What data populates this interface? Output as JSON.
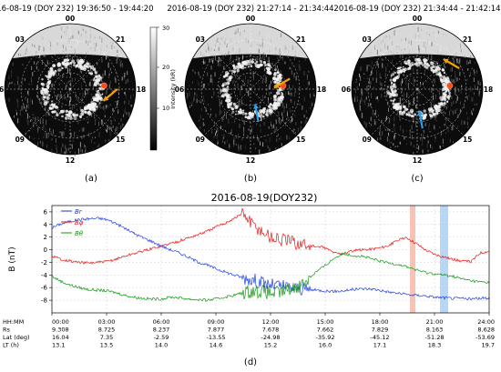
{
  "figure": {
    "panels": [
      {
        "id": "a",
        "timestamp": "2016-08-19 (DOY 232) 19:36:50 - 19:44:20",
        "caption": "(a)",
        "arrows": [
          {
            "color": "#f5a300",
            "tail": [
              0.86,
              0.5
            ],
            "angle_deg": 220
          }
        ],
        "dot": {
          "radius_frac": 0.52,
          "lt": 17.6
        }
      },
      {
        "id": "b",
        "timestamp": "2016-08-19 (DOY 232) 21:27:14 - 21:34:44",
        "caption": "(b)",
        "arrows": [
          {
            "color": "#f5a300",
            "tail": [
              0.8,
              0.58
            ],
            "angle_deg": 210
          },
          {
            "color": "#2ba0e8",
            "tail": [
              0.56,
              0.25
            ],
            "angle_deg": 100
          }
        ],
        "dot": {
          "radius_frac": 0.5,
          "lt": 17.6
        }
      },
      {
        "id": "c",
        "timestamp": "2016-08-19 (DOY 232) 21:34:44 - 21:42:14",
        "caption": "(c)",
        "arrows": [
          {
            "color": "#f5a300",
            "tail": [
              0.82,
              0.66
            ],
            "angle_deg": 150
          },
          {
            "color": "#2ba0e8",
            "tail": [
              0.54,
              0.2
            ],
            "angle_deg": 100
          }
        ],
        "dot": {
          "radius_frac": 0.5,
          "lt": 17.6
        }
      }
    ],
    "local_time_labels": [
      "00",
      "03",
      "06",
      "09",
      "12",
      "15",
      "18",
      "21"
    ],
    "colorbar": {
      "label": "Intensity (kR)",
      "ticks": [
        "10",
        "20",
        "30"
      ],
      "min": 0,
      "max": 30
    },
    "bottom_caption": "(d)"
  },
  "chart_data": {
    "type": "line",
    "title": "2016-08-19(DOY232)",
    "ylabel": "B (nT)",
    "ylim": [
      -10,
      7
    ],
    "yticks": [
      -8,
      -6,
      -4,
      -2,
      0,
      2,
      4,
      6
    ],
    "xlim": [
      0,
      24
    ],
    "legend": {
      "position": "top-left",
      "entries": [
        {
          "label": "Br",
          "color": "#1f3fdc"
        },
        {
          "label": "Bφ",
          "color": "#e01b1b"
        },
        {
          "label": "Bθ",
          "color": "#119911"
        }
      ]
    },
    "highlight_bands": [
      {
        "start": 19.65,
        "end": 19.95,
        "color": "#f7b8a8"
      },
      {
        "start": 21.3,
        "end": 21.75,
        "color": "#a9d0f5"
      }
    ],
    "series": [
      {
        "name": "Br",
        "color": "#1f3fdc",
        "x": [
          0,
          0.5,
          1,
          1.5,
          2,
          2.5,
          3,
          3.5,
          4,
          4.5,
          5,
          5.5,
          6,
          6.5,
          7,
          7.5,
          8,
          8.5,
          9,
          9.5,
          10,
          10.5,
          11,
          11.5,
          12,
          12.5,
          13,
          13.5,
          14,
          14.5,
          15,
          15.5,
          16,
          16.5,
          17,
          17.5,
          18,
          18.5,
          19,
          19.5,
          20,
          20.5,
          21,
          21.5,
          22,
          22.5,
          23,
          23.5,
          24
        ],
        "y": [
          3.5,
          4.1,
          4.5,
          4.8,
          4.9,
          5.0,
          4.8,
          4.2,
          3.4,
          2.6,
          1.9,
          1.3,
          0.6,
          0.0,
          -0.5,
          -1.2,
          -1.9,
          -2.4,
          -3.0,
          -3.5,
          -4.0,
          -4.4,
          -4.7,
          -5.2,
          -5.6,
          -5.7,
          -6.0,
          -6.1,
          -6.3,
          -6.4,
          -6.5,
          -6.6,
          -6.5,
          -6.3,
          -6.2,
          -6.2,
          -6.4,
          -6.7,
          -6.9,
          -7.1,
          -7.2,
          -7.3,
          -7.5,
          -7.6,
          -7.7,
          -7.7,
          -7.8,
          -7.7,
          -7.6
        ]
      },
      {
        "name": "Bφ",
        "color": "#e01b1b",
        "x": [
          0,
          0.5,
          1,
          1.5,
          2,
          2.5,
          3,
          3.5,
          4,
          4.5,
          5,
          5.5,
          6,
          6.5,
          7,
          7.5,
          8,
          8.5,
          9,
          9.5,
          10,
          10.5,
          11,
          11.5,
          12,
          12.5,
          13,
          13.5,
          14,
          14.5,
          15,
          15.5,
          16,
          16.5,
          17,
          17.5,
          18,
          18.5,
          19,
          19.5,
          20,
          20.5,
          21,
          21.5,
          22,
          22.5,
          23,
          23.5,
          24
        ],
        "y": [
          -1.0,
          -1.5,
          -1.8,
          -2.0,
          -2.1,
          -2.0,
          -1.9,
          -1.5,
          -1.0,
          -0.6,
          -0.2,
          0.2,
          0.6,
          1.0,
          1.4,
          1.9,
          2.4,
          2.9,
          3.6,
          4.2,
          5.0,
          5.8,
          4.0,
          3.0,
          2.0,
          1.6,
          1.4,
          1.0,
          0.7,
          0.5,
          0.3,
          -0.5,
          -0.6,
          -0.2,
          0.0,
          0.1,
          0.3,
          0.7,
          1.5,
          1.9,
          1.0,
          0.0,
          -0.7,
          -1.1,
          -1.5,
          -1.8,
          -1.9,
          -0.5,
          -0.2
        ]
      },
      {
        "name": "Bθ",
        "color": "#119911",
        "x": [
          0,
          0.5,
          1,
          1.5,
          2,
          2.5,
          3,
          3.5,
          4,
          4.5,
          5,
          5.5,
          6,
          6.5,
          7,
          7.5,
          8,
          8.5,
          9,
          9.5,
          10,
          10.5,
          11,
          11.5,
          12,
          12.5,
          13,
          13.5,
          14,
          14.5,
          15,
          15.5,
          16,
          16.5,
          17,
          17.5,
          18,
          18.5,
          19,
          19.5,
          20,
          20.5,
          21,
          21.5,
          22,
          22.5,
          23,
          23.5,
          24
        ],
        "y": [
          -4.2,
          -5.0,
          -5.6,
          -6.0,
          -6.3,
          -6.4,
          -6.5,
          -6.8,
          -7.2,
          -7.5,
          -7.7,
          -7.8,
          -7.8,
          -7.5,
          -7.6,
          -7.8,
          -7.9,
          -8.0,
          -7.8,
          -7.5,
          -7.2,
          -6.8,
          -6.5,
          -6.6,
          -6.9,
          -6.8,
          -6.2,
          -5.8,
          -4.8,
          -3.5,
          -2.5,
          -1.3,
          -0.6,
          -0.9,
          -1.0,
          -1.4,
          -1.8,
          -2.1,
          -2.3,
          -2.7,
          -3.2,
          -3.6,
          -3.8,
          -4.0,
          -4.2,
          -4.6,
          -4.9,
          -5.1,
          -5.2
        ]
      }
    ],
    "time_table": {
      "row_labels": [
        "HH:MM",
        "Rs",
        "Lat (deg)",
        "LT (h)"
      ],
      "columns": [
        {
          "x": 0,
          "values": [
            "00:00",
            "9.308",
            "16.04",
            "13.1"
          ]
        },
        {
          "x": 3,
          "values": [
            "03:00",
            "8.725",
            "7.35",
            "13.5"
          ]
        },
        {
          "x": 6,
          "values": [
            "06:00",
            "8.237",
            "-2.59",
            "14.0"
          ]
        },
        {
          "x": 9,
          "values": [
            "09:00",
            "7.877",
            "-13.55",
            "14.6"
          ]
        },
        {
          "x": 12,
          "values": [
            "12:00",
            "7.678",
            "-24.98",
            "15.2"
          ]
        },
        {
          "x": 15,
          "values": [
            "15:00",
            "7.662",
            "-35.92",
            "16.0"
          ]
        },
        {
          "x": 18,
          "values": [
            "18:00",
            "7.829",
            "-45.12",
            "17.1"
          ]
        },
        {
          "x": 21,
          "values": [
            "21:00",
            "8.163",
            "-51.28",
            "18.3"
          ]
        },
        {
          "x": 24,
          "values": [
            "24:00",
            "8.628",
            "-53.69",
            "19.7"
          ]
        }
      ]
    }
  }
}
